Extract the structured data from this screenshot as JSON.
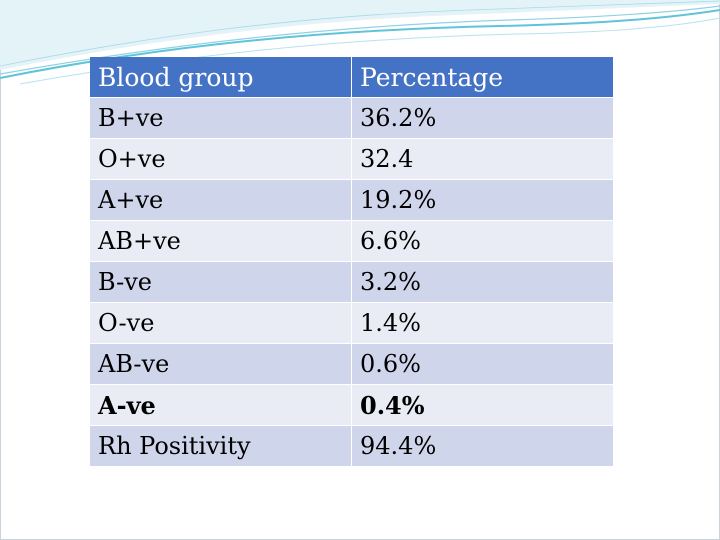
{
  "table": {
    "headers": [
      "Blood group",
      "Percentage"
    ],
    "rows": [
      {
        "group": "B+ve",
        "percentage": "36.2%"
      },
      {
        "group": "O+ve",
        "percentage": "32.4"
      },
      {
        "group": "A+ve",
        "percentage": "19.2%"
      },
      {
        "group": "AB+ve",
        "percentage": "6.6%"
      },
      {
        "group": "B-ve",
        "percentage": "3.2%"
      },
      {
        "group": "O-ve",
        "percentage": "1.4%"
      },
      {
        "group": "AB-ve",
        "percentage": "0.6%"
      },
      {
        "group": "A-ve",
        "percentage": "0.4%"
      },
      {
        "group": "Rh Positivity",
        "percentage": "94.4%"
      }
    ]
  },
  "colors": {
    "header_bg": "#4472c4",
    "row_dark": "#cfd5ea",
    "row_light": "#e9ebf5",
    "wave_accent": "#5fc3d9"
  }
}
